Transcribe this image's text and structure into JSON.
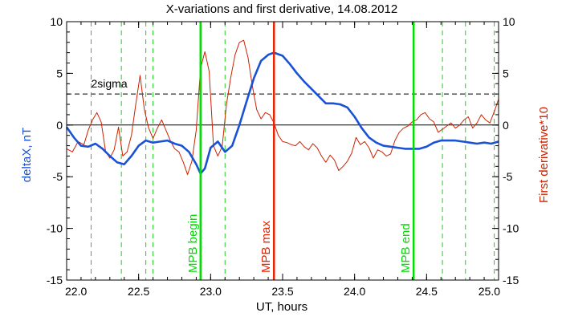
{
  "chart_data": {
    "type": "line",
    "title": "X-variations and first derivative, 14.08.2012",
    "xlabel": "UT, hours",
    "ylabel_left": "deltaX, nT",
    "ylabel_right": "First derivative*10",
    "xlim": [
      22.0,
      25.0
    ],
    "ylim": [
      -15,
      10
    ],
    "x_ticks": [
      "22.0",
      "22.5",
      "23.0",
      "23.5",
      "24.0",
      "24.5",
      "25.0"
    ],
    "y_ticks": [
      "-15",
      "-10",
      "-5",
      "0",
      "5",
      "10"
    ],
    "reference_lines": {
      "zero": 0,
      "sigma_level": 3,
      "sigma_label": "2sigma"
    },
    "markers": [
      {
        "x": 22.93,
        "label": "MPB begin",
        "color": "#00dd00"
      },
      {
        "x": 23.44,
        "label": "MPB max",
        "color": "#ee2200"
      },
      {
        "x": 24.41,
        "label": "MPB end",
        "color": "#00dd00"
      }
    ],
    "dashed_verticals": [
      22.17,
      22.38,
      22.55,
      22.6,
      23.1,
      24.61,
      24.77,
      24.97
    ],
    "dashed_color": "#22cc22",
    "series": [
      {
        "name": "deltaX, nT",
        "color": "#1a52d6",
        "x": [
          22.0,
          22.05,
          22.1,
          22.15,
          22.2,
          22.25,
          22.3,
          22.35,
          22.4,
          22.45,
          22.5,
          22.55,
          22.6,
          22.65,
          22.7,
          22.75,
          22.8,
          22.85,
          22.9,
          22.93,
          22.96,
          23.0,
          23.05,
          23.1,
          23.15,
          23.2,
          23.25,
          23.3,
          23.35,
          23.4,
          23.44,
          23.5,
          23.55,
          23.6,
          23.65,
          23.7,
          23.75,
          23.8,
          23.85,
          23.9,
          23.95,
          24.0,
          24.05,
          24.1,
          24.15,
          24.2,
          24.25,
          24.3,
          24.35,
          24.4,
          24.45,
          24.5,
          24.55,
          24.6,
          24.65,
          24.7,
          24.75,
          24.8,
          24.85,
          24.9,
          24.95,
          25.0
        ],
        "values": [
          -0.2,
          -1.2,
          -2.0,
          -2.1,
          -1.8,
          -2.3,
          -3.0,
          -3.6,
          -3.8,
          -3.0,
          -2.0,
          -1.5,
          -1.7,
          -1.6,
          -1.5,
          -1.8,
          -2.0,
          -2.6,
          -3.8,
          -4.7,
          -4.2,
          -2.2,
          -1.6,
          -2.6,
          -2.0,
          0.0,
          2.3,
          4.5,
          6.2,
          6.8,
          7.0,
          6.7,
          5.9,
          5.0,
          4.2,
          3.5,
          2.8,
          2.1,
          2.1,
          2.0,
          1.7,
          0.8,
          -0.3,
          -1.2,
          -1.7,
          -2.0,
          -2.1,
          -2.2,
          -2.3,
          -2.3,
          -2.3,
          -2.1,
          -1.7,
          -1.5,
          -1.5,
          -1.5,
          -1.6,
          -1.7,
          -1.8,
          -1.7,
          -1.8,
          -1.6
        ]
      },
      {
        "name": "First derivative*10",
        "color": "#cc2200",
        "x": [
          22.0,
          22.04,
          22.08,
          22.12,
          22.15,
          22.18,
          22.21,
          22.24,
          22.27,
          22.3,
          22.33,
          22.36,
          22.39,
          22.42,
          22.45,
          22.48,
          22.51,
          22.54,
          22.57,
          22.6,
          22.63,
          22.66,
          22.69,
          22.72,
          22.75,
          22.78,
          22.81,
          22.84,
          22.87,
          22.9,
          22.93,
          22.96,
          22.99,
          23.02,
          23.05,
          23.08,
          23.11,
          23.14,
          23.17,
          23.2,
          23.23,
          23.26,
          23.29,
          23.32,
          23.35,
          23.38,
          23.41,
          23.44,
          23.47,
          23.5,
          23.53,
          23.56,
          23.59,
          23.62,
          23.65,
          23.68,
          23.71,
          23.74,
          23.77,
          23.8,
          23.83,
          23.86,
          23.89,
          23.92,
          23.95,
          23.98,
          24.01,
          24.04,
          24.07,
          24.1,
          24.13,
          24.16,
          24.19,
          24.22,
          24.25,
          24.28,
          24.31,
          24.34,
          24.37,
          24.4,
          24.43,
          24.46,
          24.49,
          24.52,
          24.55,
          24.58,
          24.61,
          24.64,
          24.67,
          24.7,
          24.73,
          24.76,
          24.79,
          24.82,
          24.85,
          24.88,
          24.91,
          24.94,
          24.97,
          25.0
        ],
        "values": [
          -2.3,
          -2.6,
          -1.6,
          -1.9,
          -0.5,
          0.5,
          1.2,
          0.3,
          -2.5,
          -3.2,
          -2.4,
          -0.2,
          -3.0,
          -2.6,
          -1.0,
          2.0,
          4.8,
          1.5,
          -0.3,
          -1.3,
          -0.3,
          0.5,
          -0.5,
          -1.5,
          -2.3,
          -2.6,
          -3.6,
          -4.8,
          -3.5,
          -0.5,
          5.5,
          7.1,
          5.2,
          -2.0,
          -3.0,
          -2.1,
          2.0,
          4.6,
          6.8,
          8.0,
          8.2,
          6.5,
          3.8,
          1.5,
          0.6,
          1.2,
          1.0,
          0.2,
          -1.0,
          -1.6,
          -1.7,
          -1.9,
          -2.0,
          -1.6,
          -2.1,
          -2.4,
          -1.8,
          -2.2,
          -3.0,
          -3.6,
          -2.9,
          -3.4,
          -4.4,
          -4.0,
          -3.5,
          -2.7,
          -1.2,
          -1.9,
          -1.6,
          -2.2,
          -3.2,
          -2.4,
          -2.6,
          -3.0,
          -2.8,
          -1.5,
          -0.7,
          -0.3,
          -0.1,
          0.3,
          0.5,
          1.0,
          1.2,
          0.6,
          0.3,
          -0.7,
          -0.4,
          -0.1,
          0.2,
          -0.3,
          0.0,
          0.5,
          0.8,
          -0.3,
          0.2,
          1.0,
          0.5,
          0.2,
          1.3,
          2.5
        ]
      }
    ]
  }
}
